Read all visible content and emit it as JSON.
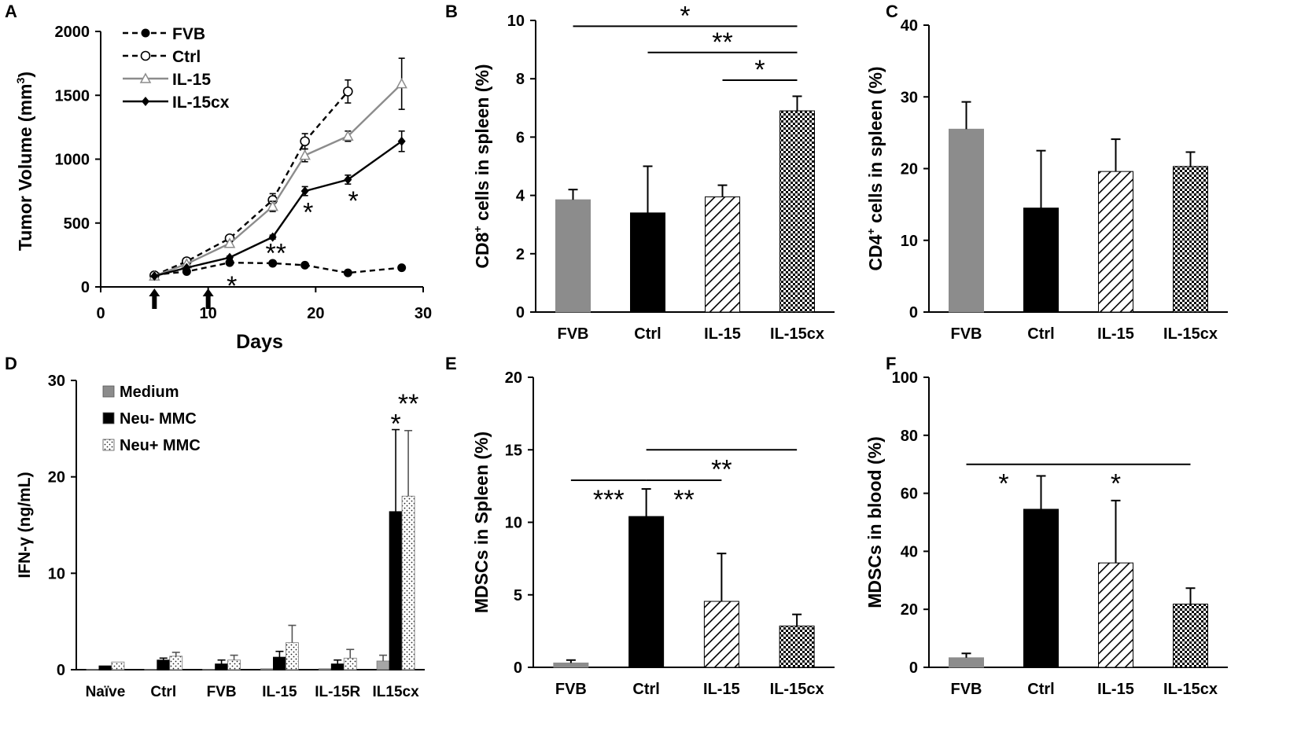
{
  "figure": {
    "colors": {
      "gray": "#8c8c8c",
      "black": "#000000",
      "light_gray": "#a6a6a6"
    }
  },
  "chart_data": [
    {
      "panel": "A",
      "type": "line",
      "xlabel": "Days",
      "ylabel_main": "Tumor Volume (mm",
      "ylabel_sup": "3",
      "ylabel_end": ")",
      "xlim": [
        0,
        30
      ],
      "ylim": [
        0,
        2000
      ],
      "xticks": [
        0,
        10,
        20,
        30
      ],
      "yticks": [
        0,
        500,
        1000,
        1500,
        2000
      ],
      "treatment_days": [
        5,
        10
      ],
      "series": [
        {
          "name": "FVB",
          "style": "dashed",
          "marker": "filled-circle",
          "color": "#000000",
          "x": [
            5,
            8,
            12,
            16,
            19,
            23,
            28
          ],
          "y": [
            95,
            120,
            190,
            185,
            170,
            110,
            150
          ],
          "err": [
            0,
            0,
            0,
            0,
            0,
            0,
            0
          ]
        },
        {
          "name": "Ctrl",
          "style": "dashed",
          "marker": "open-circle",
          "color": "#000000",
          "x": [
            5,
            8,
            12,
            16,
            19,
            23
          ],
          "y": [
            90,
            200,
            380,
            680,
            1140,
            1530
          ],
          "err": [
            0,
            0,
            20,
            50,
            60,
            90
          ]
        },
        {
          "name": "IL-15",
          "style": "solid",
          "marker": "open-triangle",
          "color": "#8c8c8c",
          "x": [
            5,
            8,
            12,
            16,
            19,
            23,
            28
          ],
          "y": [
            85,
            180,
            340,
            630,
            1030,
            1180,
            1590
          ],
          "err": [
            0,
            0,
            15,
            40,
            50,
            40,
            200
          ]
        },
        {
          "name": "IL-15cx",
          "style": "solid",
          "marker": "filled-diamond",
          "color": "#000000",
          "x": [
            5,
            8,
            12,
            16,
            19,
            23,
            28
          ],
          "y": [
            85,
            150,
            230,
            390,
            750,
            840,
            1140
          ],
          "err": [
            0,
            0,
            10,
            15,
            35,
            35,
            80
          ]
        }
      ],
      "annotations": [
        {
          "text": "*",
          "x": 12.2,
          "y": 25
        },
        {
          "text": "**",
          "x": 16.3,
          "y": 280
        },
        {
          "text": "*",
          "x": 19.3,
          "y": 600
        },
        {
          "text": "*",
          "x": 23.5,
          "y": 690
        }
      ]
    },
    {
      "panel": "B",
      "type": "bar",
      "ylabel_main": "CD8",
      "ylabel_sup": "+",
      "ylabel_end": " cells in spleen (%)",
      "categories": [
        "FVB",
        "Ctrl",
        "IL-15",
        "IL-15cx"
      ],
      "values": [
        3.85,
        3.4,
        3.95,
        6.9
      ],
      "errors": [
        0.35,
        1.6,
        0.4,
        0.5
      ],
      "fills": [
        "gray",
        "black",
        "hatch",
        "checker"
      ],
      "ylim": [
        0,
        10
      ],
      "yticks": [
        0,
        2,
        4,
        6,
        8,
        10
      ],
      "significance": [
        {
          "from": 0,
          "to": 3,
          "y": 9.8,
          "text": "*"
        },
        {
          "from": 1,
          "to": 3,
          "y": 8.9,
          "text": "**"
        },
        {
          "from": 2,
          "to": 3,
          "y": 7.95,
          "text": "*"
        }
      ]
    },
    {
      "panel": "C",
      "type": "bar",
      "ylabel_main": "CD4",
      "ylabel_sup": "+",
      "ylabel_end": " cells in spleen (%)",
      "categories": [
        "FVB",
        "Ctrl",
        "IL-15",
        "IL-15cx"
      ],
      "values": [
        25.5,
        14.5,
        19.6,
        20.3
      ],
      "errors": [
        3.8,
        8.0,
        4.5,
        2.0
      ],
      "fills": [
        "gray",
        "black",
        "hatch",
        "checker"
      ],
      "ylim": [
        0,
        40
      ],
      "yticks": [
        0,
        10,
        20,
        30,
        40
      ],
      "significance": []
    },
    {
      "panel": "D",
      "type": "bar",
      "ylabel": "IFN-γ (ng/mL)",
      "categories": [
        "Naïve",
        "Ctrl",
        "FVB",
        "IL-15",
        "IL-15R",
        "IL15cx"
      ],
      "series": [
        {
          "name": "Medium",
          "fill": "gray",
          "values": [
            0.05,
            0.05,
            0.05,
            0.1,
            0.1,
            0.9
          ],
          "errors": [
            0,
            0,
            0,
            0,
            0,
            0.6
          ]
        },
        {
          "name": "Neu- MMC",
          "fill": "black",
          "values": [
            0.4,
            1.0,
            0.6,
            1.3,
            0.6,
            16.4
          ],
          "errors": [
            0,
            0.2,
            0.4,
            0.6,
            0.4,
            8.5
          ]
        },
        {
          "name": "Neu+ MMC",
          "fill": "dots",
          "values": [
            0.8,
            1.4,
            1.0,
            2.8,
            1.2,
            18.0
          ],
          "errors": [
            0,
            0.4,
            0.5,
            1.8,
            0.9,
            6.8
          ]
        }
      ],
      "ylim": [
        0,
        30
      ],
      "yticks": [
        0,
        10,
        20,
        30
      ],
      "annotations": [
        {
          "text": "*",
          "category": 5,
          "series": 1,
          "y": 26.2
        },
        {
          "text": "**",
          "category": 5,
          "series": 2,
          "y": 28.3
        }
      ]
    },
    {
      "panel": "E",
      "type": "bar",
      "ylabel": "MDSCs in Spleen (%)",
      "categories": [
        "FVB",
        "Ctrl",
        "IL-15",
        "IL-15cx"
      ],
      "values": [
        0.3,
        10.4,
        4.55,
        2.85
      ],
      "errors": [
        0.2,
        1.9,
        3.3,
        0.8
      ],
      "fills": [
        "gray",
        "black",
        "hatch",
        "checker"
      ],
      "ylim": [
        0,
        20
      ],
      "yticks": [
        0,
        5,
        10,
        15,
        20
      ],
      "significance": [
        {
          "from": 0,
          "to": 1,
          "y": 12.9,
          "text": "***",
          "label_below": true
        },
        {
          "from": 1,
          "to": 2,
          "y": 12.9,
          "text": "**",
          "label_below": true
        },
        {
          "from": 1,
          "to": 3,
          "y": 15.0,
          "text": "**",
          "label_below": true
        }
      ]
    },
    {
      "panel": "F",
      "type": "bar",
      "ylabel": "MDSCs in blood (%)",
      "categories": [
        "FVB",
        "Ctrl",
        "IL-15",
        "IL-15cx"
      ],
      "values": [
        3.3,
        54.5,
        36.0,
        21.8
      ],
      "errors": [
        1.5,
        11.5,
        21.5,
        5.5
      ],
      "fills": [
        "gray",
        "black",
        "hatch",
        "checker"
      ],
      "ylim": [
        0,
        100
      ],
      "yticks": [
        0,
        20,
        40,
        60,
        80,
        100
      ],
      "significance": [
        {
          "from": 0,
          "to": 1,
          "y": 70,
          "text": "*",
          "label_below": true
        },
        {
          "from": 1,
          "to": 3,
          "y": 70,
          "text": "*",
          "label_below": true
        }
      ]
    }
  ]
}
